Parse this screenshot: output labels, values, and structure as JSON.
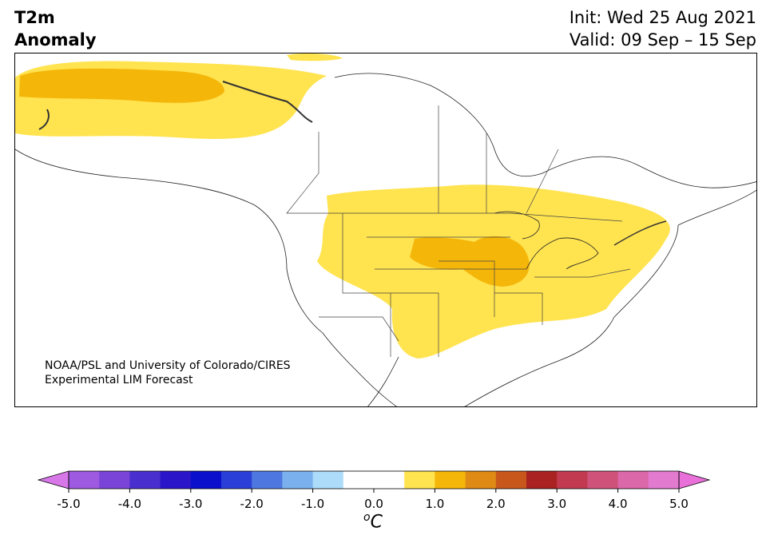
{
  "header": {
    "title_line1": "T2m",
    "title_line2": "Anomaly",
    "init": "Init: Wed 25 Aug 2021",
    "valid": "Valid: 09 Sep – 15 Sep"
  },
  "map": {
    "region": "North America",
    "credit_line1": "NOAA/PSL and University of Colorado/CIRES",
    "credit_line2": "Experimental LIM Forecast"
  },
  "colorbar": {
    "unit_sup": "o",
    "unit": "C",
    "tick_labels": [
      "-5.0",
      "-4.0",
      "-3.0",
      "-2.0",
      "-1.0",
      "0.0",
      "1.0",
      "2.0",
      "3.0",
      "4.0",
      "5.0"
    ],
    "colors": [
      "#9e5ae0",
      "#7a44d8",
      "#4a2fcf",
      "#2a16c8",
      "#0a10cc",
      "#2a3fd8",
      "#4e77e0",
      "#7bb0ee",
      "#acdcfa",
      "#ffffff",
      "#ffffff",
      "#ffe34f",
      "#f5b60a",
      "#de8a14",
      "#c8571c",
      "#aa2222",
      "#c23a50",
      "#cf527a",
      "#db68a8",
      "#e27ad0"
    ],
    "under_color": "#d878e8",
    "over_color": "#e870d8"
  }
}
